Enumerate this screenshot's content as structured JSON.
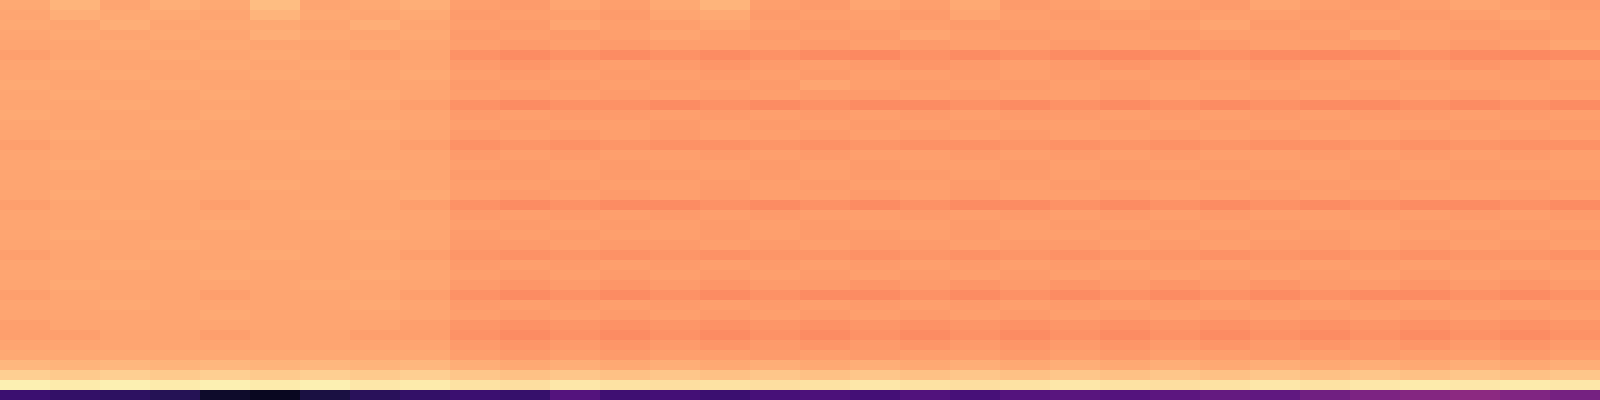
{
  "chart_data": {
    "type": "heatmap",
    "tick_labels": false,
    "zlim": [
      0,
      100
    ],
    "cells": [
      [
        82,
        84,
        81,
        83,
        82,
        86,
        81,
        82,
        83,
        80,
        79,
        81,
        80,
        82,
        84,
        80,
        79,
        81,
        80,
        82,
        79,
        80,
        81,
        80,
        79,
        81,
        80,
        79,
        80,
        81,
        80,
        79
      ],
      [
        81,
        83,
        82,
        82,
        81,
        84,
        82,
        81,
        82,
        79,
        80,
        80,
        79,
        81,
        82,
        79,
        80,
        80,
        79,
        81,
        80,
        79,
        80,
        79,
        80,
        80,
        79,
        80,
        79,
        80,
        81,
        80
      ],
      [
        82,
        81,
        83,
        81,
        82,
        82,
        81,
        83,
        81,
        80,
        79,
        81,
        80,
        80,
        81,
        80,
        79,
        80,
        80,
        79,
        80,
        80,
        79,
        80,
        81,
        79,
        80,
        79,
        80,
        79,
        80,
        80
      ],
      [
        81,
        82,
        81,
        82,
        81,
        83,
        82,
        81,
        82,
        79,
        80,
        79,
        80,
        81,
        80,
        79,
        80,
        79,
        81,
        80,
        79,
        80,
        80,
        79,
        80,
        80,
        79,
        81,
        80,
        80,
        79,
        80
      ],
      [
        81,
        81,
        82,
        81,
        82,
        81,
        81,
        82,
        81,
        80,
        79,
        80,
        79,
        80,
        80,
        80,
        79,
        80,
        79,
        80,
        80,
        79,
        80,
        80,
        79,
        80,
        80,
        79,
        80,
        79,
        80,
        81
      ],
      [
        80,
        81,
        81,
        82,
        81,
        82,
        81,
        80,
        81,
        77,
        76,
        77,
        76,
        77,
        76,
        77,
        76,
        75,
        77,
        76,
        77,
        76,
        75,
        76,
        77,
        76,
        75,
        76,
        77,
        76,
        75,
        76
      ],
      [
        81,
        82,
        81,
        81,
        82,
        81,
        82,
        81,
        81,
        79,
        78,
        79,
        80,
        79,
        78,
        79,
        80,
        79,
        78,
        79,
        80,
        79,
        78,
        79,
        79,
        78,
        79,
        80,
        79,
        78,
        79,
        80
      ],
      [
        81,
        81,
        82,
        81,
        81,
        82,
        81,
        81,
        82,
        80,
        79,
        80,
        79,
        80,
        79,
        80,
        79,
        80,
        80,
        79,
        80,
        79,
        80,
        79,
        80,
        79,
        80,
        79,
        80,
        80,
        79,
        80
      ],
      [
        82,
        81,
        81,
        82,
        81,
        81,
        82,
        81,
        81,
        79,
        80,
        79,
        80,
        79,
        80,
        79,
        81,
        80,
        79,
        80,
        79,
        80,
        79,
        80,
        79,
        80,
        79,
        80,
        79,
        80,
        80,
        79
      ],
      [
        81,
        82,
        81,
        81,
        82,
        81,
        81,
        82,
        81,
        80,
        79,
        80,
        79,
        80,
        79,
        80,
        79,
        79,
        80,
        79,
        80,
        80,
        79,
        80,
        80,
        79,
        80,
        79,
        80,
        79,
        80,
        80
      ],
      [
        81,
        81,
        82,
        81,
        81,
        81,
        82,
        81,
        80,
        77,
        76,
        77,
        77,
        76,
        77,
        76,
        77,
        76,
        76,
        77,
        76,
        77,
        76,
        77,
        76,
        77,
        76,
        76,
        77,
        76,
        77,
        76
      ],
      [
        82,
        81,
        81,
        81,
        82,
        81,
        81,
        81,
        81,
        79,
        80,
        79,
        79,
        80,
        79,
        80,
        79,
        80,
        79,
        80,
        79,
        79,
        80,
        79,
        80,
        79,
        80,
        79,
        79,
        80,
        79,
        80
      ],
      [
        81,
        81,
        81,
        82,
        81,
        81,
        81,
        82,
        81,
        80,
        79,
        80,
        80,
        79,
        80,
        79,
        80,
        79,
        80,
        79,
        80,
        80,
        79,
        80,
        79,
        80,
        79,
        80,
        80,
        79,
        80,
        79
      ],
      [
        81,
        82,
        81,
        81,
        81,
        82,
        81,
        81,
        81,
        79,
        80,
        79,
        80,
        79,
        80,
        80,
        79,
        80,
        79,
        80,
        79,
        80,
        80,
        79,
        80,
        79,
        80,
        80,
        79,
        80,
        79,
        80
      ],
      [
        80,
        81,
        81,
        81,
        81,
        81,
        81,
        81,
        80,
        77,
        78,
        77,
        78,
        77,
        77,
        78,
        77,
        78,
        77,
        77,
        78,
        77,
        78,
        77,
        78,
        77,
        77,
        78,
        77,
        78,
        77,
        77
      ],
      [
        81,
        81,
        82,
        81,
        81,
        81,
        82,
        81,
        81,
        79,
        80,
        79,
        80,
        80,
        79,
        80,
        79,
        80,
        80,
        79,
        80,
        79,
        80,
        79,
        80,
        80,
        79,
        80,
        79,
        80,
        79,
        80
      ],
      [
        81,
        82,
        81,
        81,
        82,
        81,
        81,
        81,
        81,
        80,
        79,
        80,
        79,
        80,
        80,
        79,
        80,
        79,
        80,
        80,
        79,
        80,
        79,
        80,
        79,
        80,
        80,
        79,
        80,
        79,
        80,
        80
      ],
      [
        81,
        81,
        81,
        82,
        81,
        81,
        81,
        82,
        81,
        79,
        79,
        80,
        79,
        79,
        80,
        79,
        80,
        79,
        79,
        80,
        79,
        80,
        79,
        79,
        80,
        79,
        80,
        79,
        80,
        79,
        79,
        80
      ],
      [
        81,
        81,
        81,
        81,
        81,
        82,
        81,
        81,
        81,
        80,
        80,
        79,
        80,
        80,
        79,
        80,
        79,
        80,
        80,
        79,
        80,
        79,
        80,
        80,
        79,
        80,
        79,
        80,
        79,
        80,
        80,
        79
      ],
      [
        81,
        82,
        81,
        81,
        81,
        81,
        81,
        81,
        82,
        80,
        79,
        80,
        79,
        80,
        79,
        80,
        80,
        79,
        80,
        79,
        80,
        80,
        79,
        80,
        80,
        79,
        80,
        79,
        80,
        80,
        79,
        80
      ],
      [
        80,
        81,
        81,
        81,
        80,
        81,
        81,
        81,
        80,
        77,
        76,
        77,
        76,
        76,
        77,
        76,
        77,
        76,
        77,
        76,
        76,
        77,
        76,
        77,
        76,
        77,
        76,
        77,
        76,
        76,
        77,
        76
      ],
      [
        81,
        81,
        82,
        81,
        81,
        81,
        82,
        81,
        81,
        79,
        80,
        79,
        80,
        79,
        80,
        79,
        80,
        80,
        79,
        80,
        79,
        80,
        79,
        80,
        79,
        80,
        80,
        79,
        80,
        79,
        80,
        79
      ],
      [
        81,
        81,
        81,
        81,
        82,
        81,
        81,
        81,
        81,
        80,
        79,
        80,
        79,
        80,
        79,
        80,
        79,
        80,
        80,
        79,
        80,
        79,
        80,
        79,
        80,
        79,
        80,
        80,
        79,
        80,
        79,
        80
      ],
      [
        81,
        82,
        81,
        81,
        81,
        81,
        81,
        82,
        81,
        79,
        80,
        79,
        80,
        80,
        79,
        80,
        79,
        79,
        80,
        79,
        80,
        80,
        79,
        80,
        79,
        80,
        79,
        80,
        80,
        79,
        80,
        79
      ],
      [
        81,
        81,
        81,
        82,
        81,
        81,
        81,
        81,
        81,
        79,
        79,
        80,
        79,
        79,
        80,
        79,
        80,
        79,
        79,
        80,
        79,
        79,
        80,
        79,
        80,
        79,
        79,
        80,
        79,
        80,
        79,
        80
      ],
      [
        80,
        81,
        81,
        81,
        81,
        82,
        81,
        81,
        80,
        78,
        77,
        78,
        77,
        78,
        77,
        78,
        78,
        77,
        78,
        77,
        78,
        77,
        78,
        78,
        77,
        78,
        77,
        78,
        77,
        78,
        78,
        77
      ],
      [
        81,
        81,
        82,
        81,
        81,
        81,
        81,
        81,
        81,
        79,
        80,
        79,
        80,
        79,
        80,
        79,
        80,
        79,
        80,
        79,
        80,
        79,
        80,
        79,
        80,
        79,
        80,
        79,
        80,
        79,
        80,
        79
      ],
      [
        81,
        81,
        81,
        81,
        82,
        81,
        81,
        82,
        81,
        80,
        79,
        80,
        79,
        80,
        79,
        80,
        79,
        80,
        79,
        80,
        79,
        80,
        79,
        80,
        79,
        80,
        79,
        80,
        79,
        80,
        79,
        80
      ],
      [
        81,
        82,
        81,
        81,
        81,
        81,
        82,
        81,
        81,
        79,
        78,
        79,
        78,
        79,
        78,
        79,
        79,
        78,
        79,
        78,
        79,
        78,
        79,
        78,
        79,
        78,
        79,
        79,
        78,
        79,
        78,
        79
      ],
      [
        80,
        81,
        81,
        81,
        80,
        81,
        81,
        81,
        80,
        77,
        76,
        77,
        76,
        77,
        76,
        77,
        76,
        76,
        77,
        76,
        77,
        76,
        77,
        76,
        77,
        76,
        77,
        76,
        76,
        77,
        76,
        77
      ],
      [
        81,
        81,
        82,
        81,
        81,
        81,
        81,
        82,
        81,
        79,
        80,
        79,
        80,
        79,
        80,
        79,
        80,
        79,
        80,
        79,
        80,
        79,
        80,
        79,
        80,
        79,
        80,
        79,
        80,
        79,
        80,
        79
      ],
      [
        81,
        81,
        81,
        81,
        82,
        81,
        81,
        81,
        81,
        80,
        79,
        80,
        79,
        80,
        79,
        80,
        79,
        80,
        79,
        80,
        79,
        80,
        79,
        80,
        79,
        80,
        79,
        80,
        79,
        80,
        79,
        80
      ],
      [
        80,
        81,
        81,
        81,
        81,
        81,
        81,
        81,
        80,
        78,
        77,
        78,
        77,
        78,
        77,
        78,
        77,
        78,
        77,
        78,
        77,
        78,
        77,
        78,
        77,
        78,
        77,
        78,
        77,
        78,
        77,
        78
      ],
      [
        80,
        80,
        81,
        81,
        80,
        81,
        81,
        80,
        80,
        77,
        76,
        77,
        76,
        77,
        76,
        77,
        76,
        77,
        76,
        77,
        76,
        77,
        76,
        77,
        76,
        77,
        76,
        77,
        76,
        77,
        76,
        77
      ],
      [
        81,
        81,
        81,
        81,
        81,
        81,
        81,
        81,
        81,
        79,
        78,
        79,
        78,
        79,
        78,
        79,
        78,
        79,
        78,
        79,
        78,
        79,
        78,
        79,
        78,
        79,
        78,
        79,
        78,
        79,
        78,
        79
      ],
      [
        82,
        82,
        82,
        82,
        82,
        82,
        82,
        82,
        82,
        80,
        79,
        80,
        79,
        80,
        80,
        79,
        80,
        79,
        80,
        80,
        79,
        80,
        79,
        80,
        80,
        79,
        80,
        79,
        80,
        80,
        79,
        80
      ],
      [
        85,
        84,
        85,
        84,
        85,
        84,
        85,
        84,
        85,
        83,
        82,
        83,
        82,
        83,
        82,
        83,
        82,
        83,
        82,
        83,
        82,
        83,
        82,
        83,
        82,
        83,
        82,
        83,
        82,
        83,
        82,
        83
      ],
      [
        90,
        89,
        90,
        89,
        90,
        89,
        90,
        89,
        90,
        88,
        87,
        88,
        87,
        88,
        87,
        88,
        87,
        88,
        87,
        88,
        87,
        88,
        87,
        88,
        87,
        88,
        87,
        88,
        87,
        88,
        87,
        88
      ],
      [
        97,
        96,
        97,
        96,
        97,
        96,
        97,
        95,
        96,
        94,
        93,
        95,
        94,
        93,
        94,
        93,
        94,
        95,
        94,
        93,
        94,
        95,
        94,
        93,
        94,
        95,
        94,
        95,
        96,
        95,
        96,
        95
      ],
      [
        20,
        18,
        17,
        15,
        8,
        6,
        12,
        16,
        18,
        20,
        19,
        26,
        21,
        22,
        20,
        23,
        24,
        22,
        25,
        23,
        26,
        27,
        26,
        28,
        30,
        29,
        33,
        36,
        38,
        40,
        37,
        34
      ]
    ]
  }
}
